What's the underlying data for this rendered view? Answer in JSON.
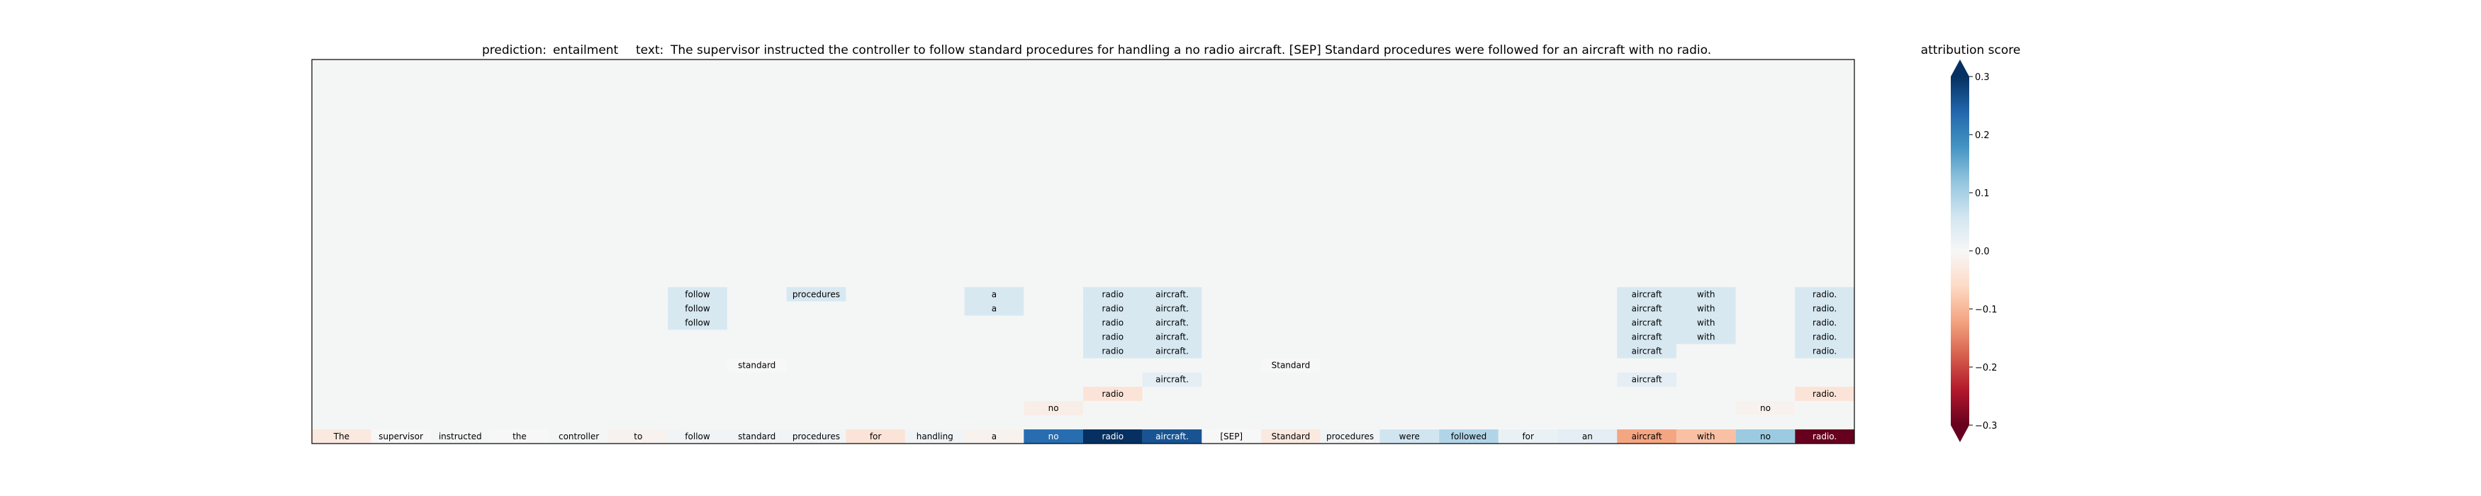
{
  "chart_data": {
    "type": "heatmap",
    "title": {
      "prediction_label": "prediction:",
      "prediction_value": "entailment",
      "text_label": "text:",
      "text_value": "The supervisor instructed the controller to follow standard procedures for handling a no radio aircraft. [SEP] Standard procedures were followed for an aircraft with no radio."
    },
    "tokens": [
      "The",
      "supervisor",
      "instructed",
      "the",
      "controller",
      "to",
      "follow",
      "standard",
      "procedures",
      "for",
      "handling",
      "a",
      "no",
      "radio",
      "aircraft.",
      "[SEP]",
      "Standard",
      "procedures",
      "were",
      "followed",
      "for",
      "an",
      "aircraft",
      "with",
      "no",
      "radio."
    ],
    "base_scores": [
      -0.03,
      0.0,
      0.005,
      0.0,
      0.005,
      -0.01,
      0.01,
      0.01,
      0.01,
      -0.04,
      0.01,
      -0.01,
      0.23,
      0.3,
      0.26,
      0.0,
      -0.03,
      0.01,
      0.06,
      0.09,
      0.02,
      0.03,
      -0.12,
      -0.09,
      0.11,
      -0.3
    ],
    "upper_rows": 26,
    "upper_cells": [
      {
        "row": 16,
        "col": 6,
        "text": "follow",
        "score": 0.05
      },
      {
        "row": 17,
        "col": 6,
        "text": "follow",
        "score": 0.05
      },
      {
        "row": 18,
        "col": 6,
        "text": "follow",
        "score": 0.05
      },
      {
        "row": 16,
        "col": 8,
        "text": "procedures",
        "score": 0.05
      },
      {
        "row": 16,
        "col": 11,
        "text": "a",
        "score": 0.05
      },
      {
        "row": 17,
        "col": 11,
        "text": "a",
        "score": 0.05
      },
      {
        "row": 16,
        "col": 13,
        "text": "radio",
        "score": 0.05
      },
      {
        "row": 17,
        "col": 13,
        "text": "radio",
        "score": 0.05
      },
      {
        "row": 18,
        "col": 13,
        "text": "radio",
        "score": 0.05
      },
      {
        "row": 19,
        "col": 13,
        "text": "radio",
        "score": 0.05
      },
      {
        "row": 20,
        "col": 13,
        "text": "radio",
        "score": 0.05
      },
      {
        "row": 16,
        "col": 14,
        "text": "aircraft.",
        "score": 0.05
      },
      {
        "row": 17,
        "col": 14,
        "text": "aircraft.",
        "score": 0.05
      },
      {
        "row": 18,
        "col": 14,
        "text": "aircraft.",
        "score": 0.05
      },
      {
        "row": 19,
        "col": 14,
        "text": "aircraft.",
        "score": 0.05
      },
      {
        "row": 20,
        "col": 14,
        "text": "aircraft.",
        "score": 0.05
      },
      {
        "row": 16,
        "col": 22,
        "text": "aircraft",
        "score": 0.05
      },
      {
        "row": 17,
        "col": 22,
        "text": "aircraft",
        "score": 0.05
      },
      {
        "row": 18,
        "col": 22,
        "text": "aircraft",
        "score": 0.05
      },
      {
        "row": 19,
        "col": 22,
        "text": "aircraft",
        "score": 0.05
      },
      {
        "row": 20,
        "col": 22,
        "text": "aircraft",
        "score": 0.05
      },
      {
        "row": 16,
        "col": 23,
        "text": "with",
        "score": 0.05
      },
      {
        "row": 17,
        "col": 23,
        "text": "with",
        "score": 0.05
      },
      {
        "row": 18,
        "col": 23,
        "text": "with",
        "score": 0.05
      },
      {
        "row": 19,
        "col": 23,
        "text": "with",
        "score": 0.05
      },
      {
        "row": 16,
        "col": 25,
        "text": "radio.",
        "score": 0.05
      },
      {
        "row": 17,
        "col": 25,
        "text": "radio.",
        "score": 0.05
      },
      {
        "row": 18,
        "col": 25,
        "text": "radio.",
        "score": 0.05
      },
      {
        "row": 19,
        "col": 25,
        "text": "radio.",
        "score": 0.05
      },
      {
        "row": 20,
        "col": 25,
        "text": "radio.",
        "score": 0.05
      },
      {
        "row": 21,
        "col": 7,
        "text": "standard",
        "score": 0.0
      },
      {
        "row": 21,
        "col": 16,
        "text": "Standard",
        "score": 0.0
      },
      {
        "row": 22,
        "col": 14,
        "text": "aircraft.",
        "score": 0.03
      },
      {
        "row": 22,
        "col": 22,
        "text": "aircraft",
        "score": 0.03
      },
      {
        "row": 23,
        "col": 13,
        "text": "radio",
        "score": -0.04
      },
      {
        "row": 23,
        "col": 25,
        "text": "radio.",
        "score": -0.04
      },
      {
        "row": 24,
        "col": 12,
        "text": "no",
        "score": -0.02
      },
      {
        "row": 24,
        "col": 24,
        "text": "no",
        "score": -0.01
      }
    ],
    "colorbar": {
      "label": "attribution score",
      "min": -0.3,
      "max": 0.3,
      "ticks": [
        0.3,
        0.2,
        0.1,
        0.0,
        -0.1,
        -0.2,
        -0.3
      ],
      "tick_labels": [
        "0.3",
        "0.2",
        "0.1",
        "0.0",
        "−0.1",
        "−0.2",
        "−0.3"
      ],
      "colormap": "RdBu"
    },
    "background_color": "#f4f6f6"
  }
}
